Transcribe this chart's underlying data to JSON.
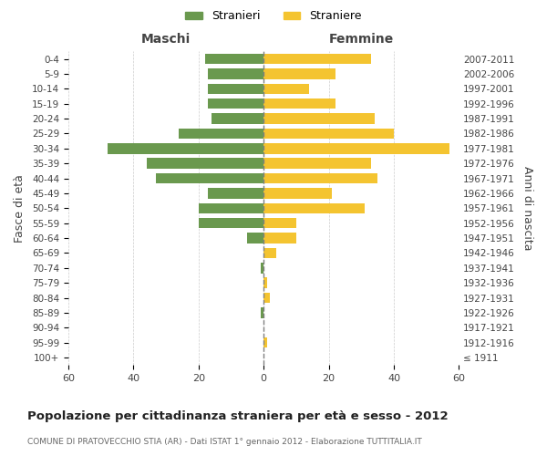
{
  "age_groups": [
    "100+",
    "95-99",
    "90-94",
    "85-89",
    "80-84",
    "75-79",
    "70-74",
    "65-69",
    "60-64",
    "55-59",
    "50-54",
    "45-49",
    "40-44",
    "35-39",
    "30-34",
    "25-29",
    "20-24",
    "15-19",
    "10-14",
    "5-9",
    "0-4"
  ],
  "birth_years": [
    "≤ 1911",
    "1912-1916",
    "1917-1921",
    "1922-1926",
    "1927-1931",
    "1932-1936",
    "1937-1941",
    "1942-1946",
    "1947-1951",
    "1952-1956",
    "1957-1961",
    "1962-1966",
    "1967-1971",
    "1972-1976",
    "1977-1981",
    "1982-1986",
    "1987-1991",
    "1992-1996",
    "1997-2001",
    "2002-2006",
    "2007-2011"
  ],
  "males": [
    0,
    0,
    0,
    1,
    0,
    0,
    1,
    0,
    5,
    20,
    20,
    17,
    33,
    36,
    48,
    26,
    16,
    17,
    17,
    17,
    18
  ],
  "females": [
    0,
    1,
    0,
    0,
    2,
    1,
    0,
    4,
    10,
    10,
    31,
    21,
    35,
    33,
    57,
    40,
    34,
    22,
    14,
    22,
    33
  ],
  "male_color": "#6a994e",
  "female_color": "#f4c430",
  "male_label": "Stranieri",
  "female_label": "Straniere",
  "title": "Popolazione per cittadinanza straniera per età e sesso - 2012",
  "subtitle": "COMUNE DI PRATOVECCHIO STIA (AR) - Dati ISTAT 1° gennaio 2012 - Elaborazione TUTTITALIA.IT",
  "xlabel_left": "Maschi",
  "xlabel_right": "Femmine",
  "ylabel_left": "Fasce di età",
  "ylabel_right": "Anni di nascita",
  "xlim": 60,
  "background_color": "#ffffff"
}
